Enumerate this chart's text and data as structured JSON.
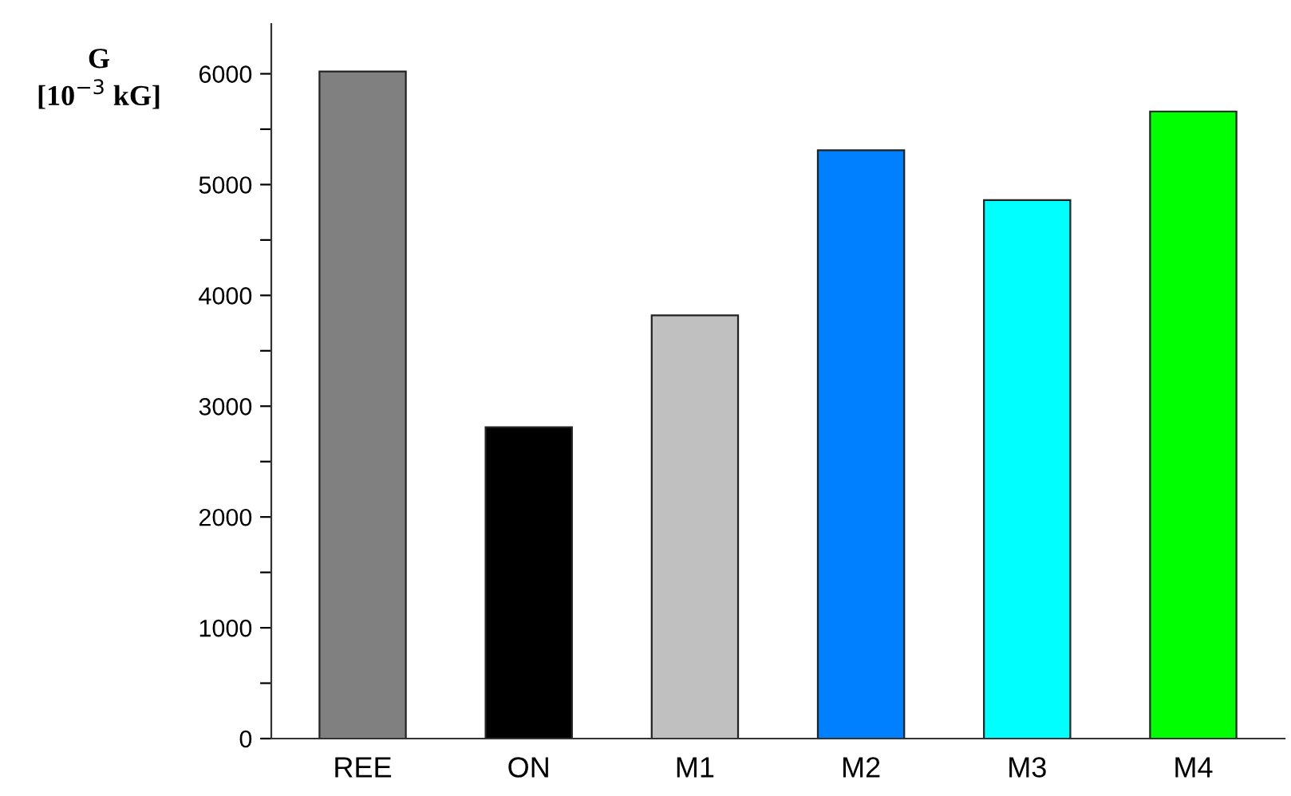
{
  "chart_data": {
    "type": "bar",
    "ylabel": "G\n[10$^{−3}$ kG]",
    "categories": [
      "REE",
      "ON",
      "M1",
      "M2",
      "M3",
      "M4"
    ],
    "values": [
      6020,
      2810,
      3820,
      5310,
      4860,
      5660
    ],
    "colors": [
      "#808080",
      "#000000",
      "#c0c0c0",
      "#0080ff",
      "#00ffff",
      "#00ff00"
    ],
    "ylim": [
      0,
      6450
    ],
    "yticks": [
      0,
      {
        "value": 500,
        "label": null
      },
      1000,
      {
        "value": 1500,
        "label": null
      },
      2000,
      {
        "value": 2500,
        "label": null
      },
      3000,
      {
        "value": 3500,
        "label": null
      },
      4000,
      {
        "value": 4500,
        "label": null
      },
      5000,
      {
        "value": 5500,
        "label": null
      },
      6000
    ],
    "grid": false,
    "legend": false
  }
}
